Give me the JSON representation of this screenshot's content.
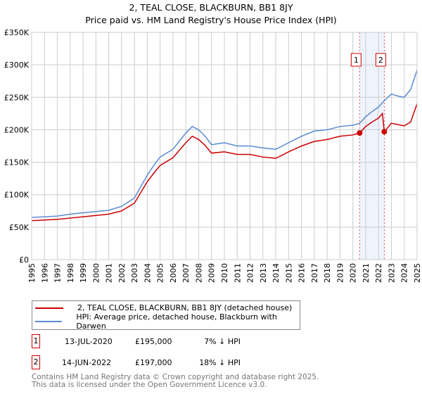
{
  "chart_data": {
    "type": "line",
    "title": "2, TEAL CLOSE, BLACKBURN, BB1 8JY",
    "subtitle": "Price paid vs. HM Land Registry's House Price Index (HPI)",
    "xlim": [
      1995,
      2025
    ],
    "ylim": [
      0,
      350000
    ],
    "y_ticks": [
      0,
      50000,
      100000,
      150000,
      200000,
      250000,
      300000,
      350000
    ],
    "y_tick_labels": [
      "£0",
      "£50K",
      "£100K",
      "£150K",
      "£200K",
      "£250K",
      "£300K",
      "£350K"
    ],
    "x_ticks": [
      1995,
      1996,
      1997,
      1998,
      1999,
      2000,
      2001,
      2002,
      2003,
      2004,
      2005,
      2006,
      2007,
      2008,
      2009,
      2010,
      2011,
      2012,
      2013,
      2014,
      2015,
      2016,
      2017,
      2018,
      2019,
      2020,
      2021,
      2022,
      2023,
      2024,
      2025
    ],
    "grid": true,
    "series": [
      {
        "name": "2, TEAL CLOSE, BLACKBURN, BB1 8JY (detached house)",
        "color": "#cc0000",
        "x": [
          1995,
          1996,
          1997,
          1998,
          1999,
          2000,
          2001,
          2002,
          2003,
          2004,
          2004.5,
          2005,
          2006,
          2007,
          2007.5,
          2008,
          2008.5,
          2009,
          2010,
          2011,
          2012,
          2013,
          2014,
          2015,
          2016,
          2017,
          2018,
          2019,
          2020,
          2020.53,
          2021,
          2021.5,
          2022,
          2022.3,
          2022.45,
          2023,
          2023.5,
          2024,
          2024.5,
          2025
        ],
        "y": [
          60000,
          61000,
          62000,
          64000,
          66000,
          68000,
          70000,
          75000,
          87000,
          120000,
          133000,
          145000,
          157000,
          180000,
          190000,
          185000,
          176000,
          164000,
          166000,
          162000,
          162000,
          158000,
          156000,
          166000,
          175000,
          182000,
          185000,
          190000,
          192000,
          195000,
          205000,
          212000,
          218000,
          225000,
          197000,
          210000,
          208000,
          206000,
          212000,
          240000
        ]
      },
      {
        "name": "HPI: Average price, detached house, Blackburn with Darwen",
        "color": "#5b8bd0",
        "x": [
          1995,
          1996,
          1997,
          1998,
          1999,
          2000,
          2001,
          2002,
          2003,
          2004,
          2004.5,
          2005,
          2006,
          2007,
          2007.5,
          2008,
          2008.5,
          2009,
          2010,
          2011,
          2012,
          2013,
          2014,
          2015,
          2016,
          2017,
          2018,
          2019,
          2020,
          2020.53,
          2021,
          2021.5,
          2022,
          2022.45,
          2023,
          2023.5,
          2024,
          2024.5,
          2025
        ],
        "y": [
          65000,
          66000,
          67000,
          70000,
          72000,
          74000,
          76000,
          82000,
          95000,
          130000,
          145000,
          158000,
          170000,
          195000,
          205000,
          200000,
          190000,
          177000,
          180000,
          175000,
          175000,
          172000,
          170000,
          180000,
          190000,
          198000,
          200000,
          205000,
          207000,
          210000,
          220000,
          228000,
          235000,
          245000,
          255000,
          252000,
          250000,
          262000,
          292000
        ]
      }
    ],
    "sales": [
      {
        "label": "1",
        "date": "13-JUL-2020",
        "x": 2020.53,
        "price": "£195,000",
        "value": 195000,
        "hpi": "7% ↓ HPI"
      },
      {
        "label": "2",
        "date": "14-JUN-2022",
        "x": 2022.45,
        "price": "£197,000",
        "value": 197000,
        "hpi": "18% ↓ HPI"
      }
    ],
    "legend_position": "below"
  },
  "footer": {
    "line1": "Contains HM Land Registry data © Crown copyright and database right 2025.",
    "line2": "This data is licensed under the Open Government Licence v3.0."
  }
}
